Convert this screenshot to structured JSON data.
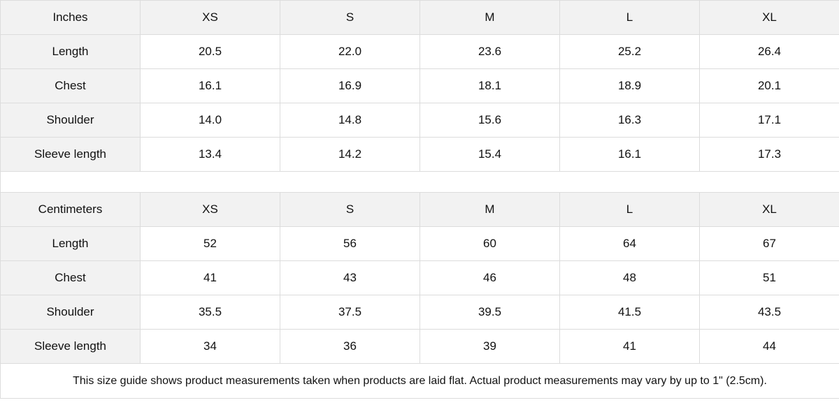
{
  "tables": [
    {
      "unit": "Inches",
      "sizes": [
        "XS",
        "S",
        "M",
        "L",
        "XL"
      ],
      "rows": [
        {
          "label": "Length",
          "values": [
            "20.5",
            "22.0",
            "23.6",
            "25.2",
            "26.4"
          ]
        },
        {
          "label": "Chest",
          "values": [
            "16.1",
            "16.9",
            "18.1",
            "18.9",
            "20.1"
          ]
        },
        {
          "label": "Shoulder",
          "values": [
            "14.0",
            "14.8",
            "15.6",
            "16.3",
            "17.1"
          ]
        },
        {
          "label": "Sleeve length",
          "values": [
            "13.4",
            "14.2",
            "15.4",
            "16.1",
            "17.3"
          ]
        }
      ]
    },
    {
      "unit": "Centimeters",
      "sizes": [
        "XS",
        "S",
        "M",
        "L",
        "XL"
      ],
      "rows": [
        {
          "label": "Length",
          "values": [
            "52",
            "56",
            "60",
            "64",
            "67"
          ]
        },
        {
          "label": "Chest",
          "values": [
            "41",
            "43",
            "46",
            "48",
            "51"
          ]
        },
        {
          "label": "Shoulder",
          "values": [
            "35.5",
            "37.5",
            "39.5",
            "41.5",
            "43.5"
          ]
        },
        {
          "label": "Sleeve length",
          "values": [
            "34",
            "36",
            "39",
            "41",
            "44"
          ]
        }
      ]
    }
  ],
  "footnote": "This size guide shows product measurements taken when products are laid flat.  Actual product measurements may vary by up to 1\" (2.5cm).",
  "colors": {
    "header_bg": "#f2f2f2",
    "border": "#dcdcdc"
  }
}
